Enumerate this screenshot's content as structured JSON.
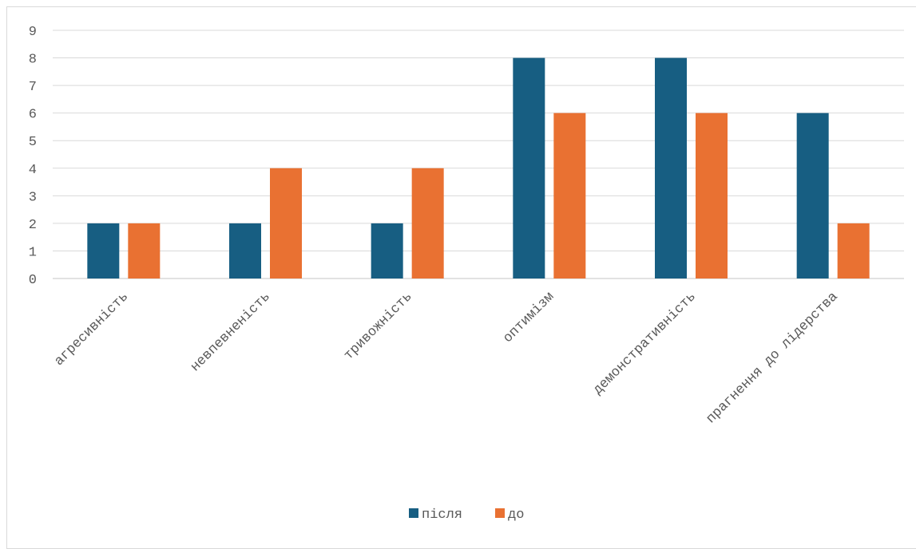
{
  "chart_data": {
    "type": "bar",
    "categories": [
      "агресивність",
      "невпевненість",
      "тривожність",
      "оптимізм",
      "демонстративність",
      "прагнення до лідерства"
    ],
    "series": [
      {
        "name": "після",
        "values": [
          2,
          2,
          2,
          8,
          8,
          6
        ],
        "color": "#175E82"
      },
      {
        "name": "до",
        "values": [
          2,
          4,
          4,
          6,
          6,
          2
        ],
        "color": "#E97132"
      }
    ],
    "ylim": [
      0,
      9
    ],
    "yticks": [
      "0",
      "1",
      "2",
      "3",
      "4",
      "5",
      "6",
      "7",
      "8",
      "9"
    ],
    "grid": true,
    "legend_position": "bottom",
    "gridline_color": "#d9d9d9",
    "label_color": "#595959"
  }
}
